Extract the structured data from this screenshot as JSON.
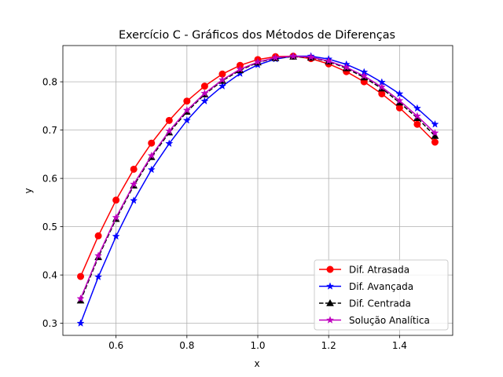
{
  "chart_data": {
    "type": "line",
    "title": "Exercício C - Gráficos dos Métodos de Diferenças",
    "xlabel": "x",
    "ylabel": "y",
    "xlim": [
      0.45,
      1.55
    ],
    "ylim": [
      0.275,
      0.875
    ],
    "xticks": [
      0.6,
      0.8,
      1.0,
      1.2,
      1.4
    ],
    "xtick_labels": [
      "0.6",
      "0.8",
      "1.0",
      "1.2",
      "1.4"
    ],
    "yticks": [
      0.3,
      0.4,
      0.5,
      0.6,
      0.7,
      0.8
    ],
    "ytick_labels": [
      "0.3",
      "0.4",
      "0.5",
      "0.6",
      "0.7",
      "0.8"
    ],
    "grid": true,
    "legend_position": "lower-right",
    "x": [
      0.5,
      0.55,
      0.6,
      0.65,
      0.7,
      0.75,
      0.8,
      0.85,
      0.9,
      0.95,
      1.0,
      1.05,
      1.1,
      1.15,
      1.2,
      1.25,
      1.3,
      1.35,
      1.4,
      1.45,
      1.5
    ],
    "series": [
      {
        "name": "Dif. Atrasada",
        "color": "#ff0000",
        "marker": "circle",
        "linestyle": "solid",
        "values": [
          0.397,
          0.481,
          0.555,
          0.619,
          0.673,
          0.72,
          0.76,
          0.791,
          0.816,
          0.834,
          0.846,
          0.852,
          0.853,
          0.848,
          0.837,
          0.821,
          0.8,
          0.775,
          0.746,
          0.712,
          0.675
        ]
      },
      {
        "name": "Dif. Avançada",
        "color": "#0000ff",
        "marker": "star",
        "linestyle": "solid",
        "values": [
          0.3,
          0.396,
          0.48,
          0.554,
          0.618,
          0.672,
          0.72,
          0.76,
          0.791,
          0.817,
          0.835,
          0.847,
          0.853,
          0.853,
          0.847,
          0.836,
          0.82,
          0.799,
          0.775,
          0.745,
          0.712
        ]
      },
      {
        "name": "Dif. Centrada",
        "color": "#000000",
        "marker": "triangle",
        "linestyle": "dashed",
        "values": [
          0.347,
          0.437,
          0.516,
          0.585,
          0.644,
          0.695,
          0.738,
          0.774,
          0.802,
          0.824,
          0.84,
          0.849,
          0.852,
          0.85,
          0.842,
          0.828,
          0.809,
          0.786,
          0.757,
          0.725,
          0.688
        ]
      },
      {
        "name": "Solução Analítica",
        "color": "#bf00bf",
        "marker": "star",
        "linestyle": "solid",
        "values": [
          0.351,
          0.44,
          0.519,
          0.588,
          0.647,
          0.698,
          0.741,
          0.776,
          0.804,
          0.826,
          0.841,
          0.85,
          0.853,
          0.851,
          0.843,
          0.83,
          0.812,
          0.789,
          0.761,
          0.729,
          0.694
        ]
      }
    ]
  }
}
